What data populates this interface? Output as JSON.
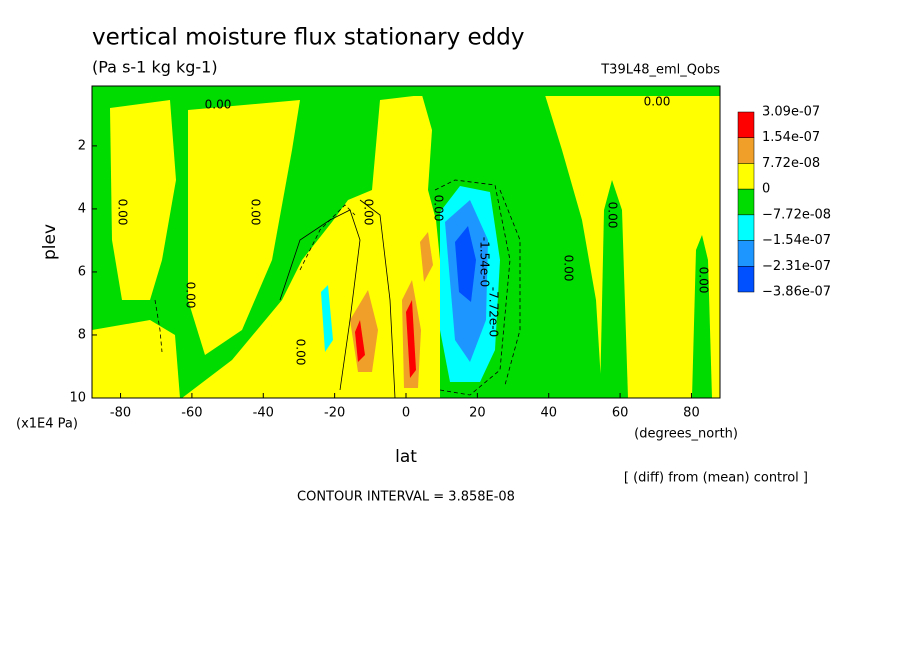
{
  "chart_data": {
    "type": "contour",
    "title": "vertical moisture flux stationary eddy",
    "subtitle": "(Pa s-1 kg kg-1)",
    "run_label": "T39L48_eml_Qobs",
    "xlabel": "lat",
    "ylabel": "plev",
    "xunits": "(degrees_north)",
    "yunits": "(x1E4 Pa)",
    "note": "[ (diff) from (mean) control ]",
    "contour_interval": "CONTOUR INTERVAL = 3.858E-08",
    "xlim": [
      -88,
      88
    ],
    "xticks": [
      -80,
      -60,
      -40,
      -20,
      0,
      20,
      40,
      60,
      80
    ],
    "ylim": [
      10,
      0.1
    ],
    "yticks": [
      2,
      4,
      6,
      8,
      10
    ],
    "colorbar": {
      "colors": [
        "#ff0000",
        "#f0a028",
        "#ffff00",
        "#00dc00",
        "#00ffff",
        "#1e96ff",
        "#0050ff"
      ],
      "levels": [
        {
          "value": 3.09e-07,
          "label": "3.09e-07"
        },
        {
          "value": 1.54e-07,
          "label": "1.54e-07"
        },
        {
          "value": 7.72e-08,
          "label": "7.72e-08"
        },
        0,
        {
          "value": -7.72e-08,
          "label": "−7.72e-08"
        },
        {
          "value": -1.54e-07,
          "label": "−1.54e-07"
        },
        {
          "value": -2.31e-07,
          "label": "−2.31e-07"
        },
        {
          "value": -3.86e-07,
          "label": "−3.86e-07"
        }
      ]
    },
    "contour_labels": [
      "0.00",
      "0.00",
      "0.00",
      "0.00",
      "0.00",
      "0.00",
      "0.00",
      "0.00",
      "0.00",
      "0.00",
      "0.00",
      "-1.54e-0",
      "-7.72e-0"
    ]
  }
}
